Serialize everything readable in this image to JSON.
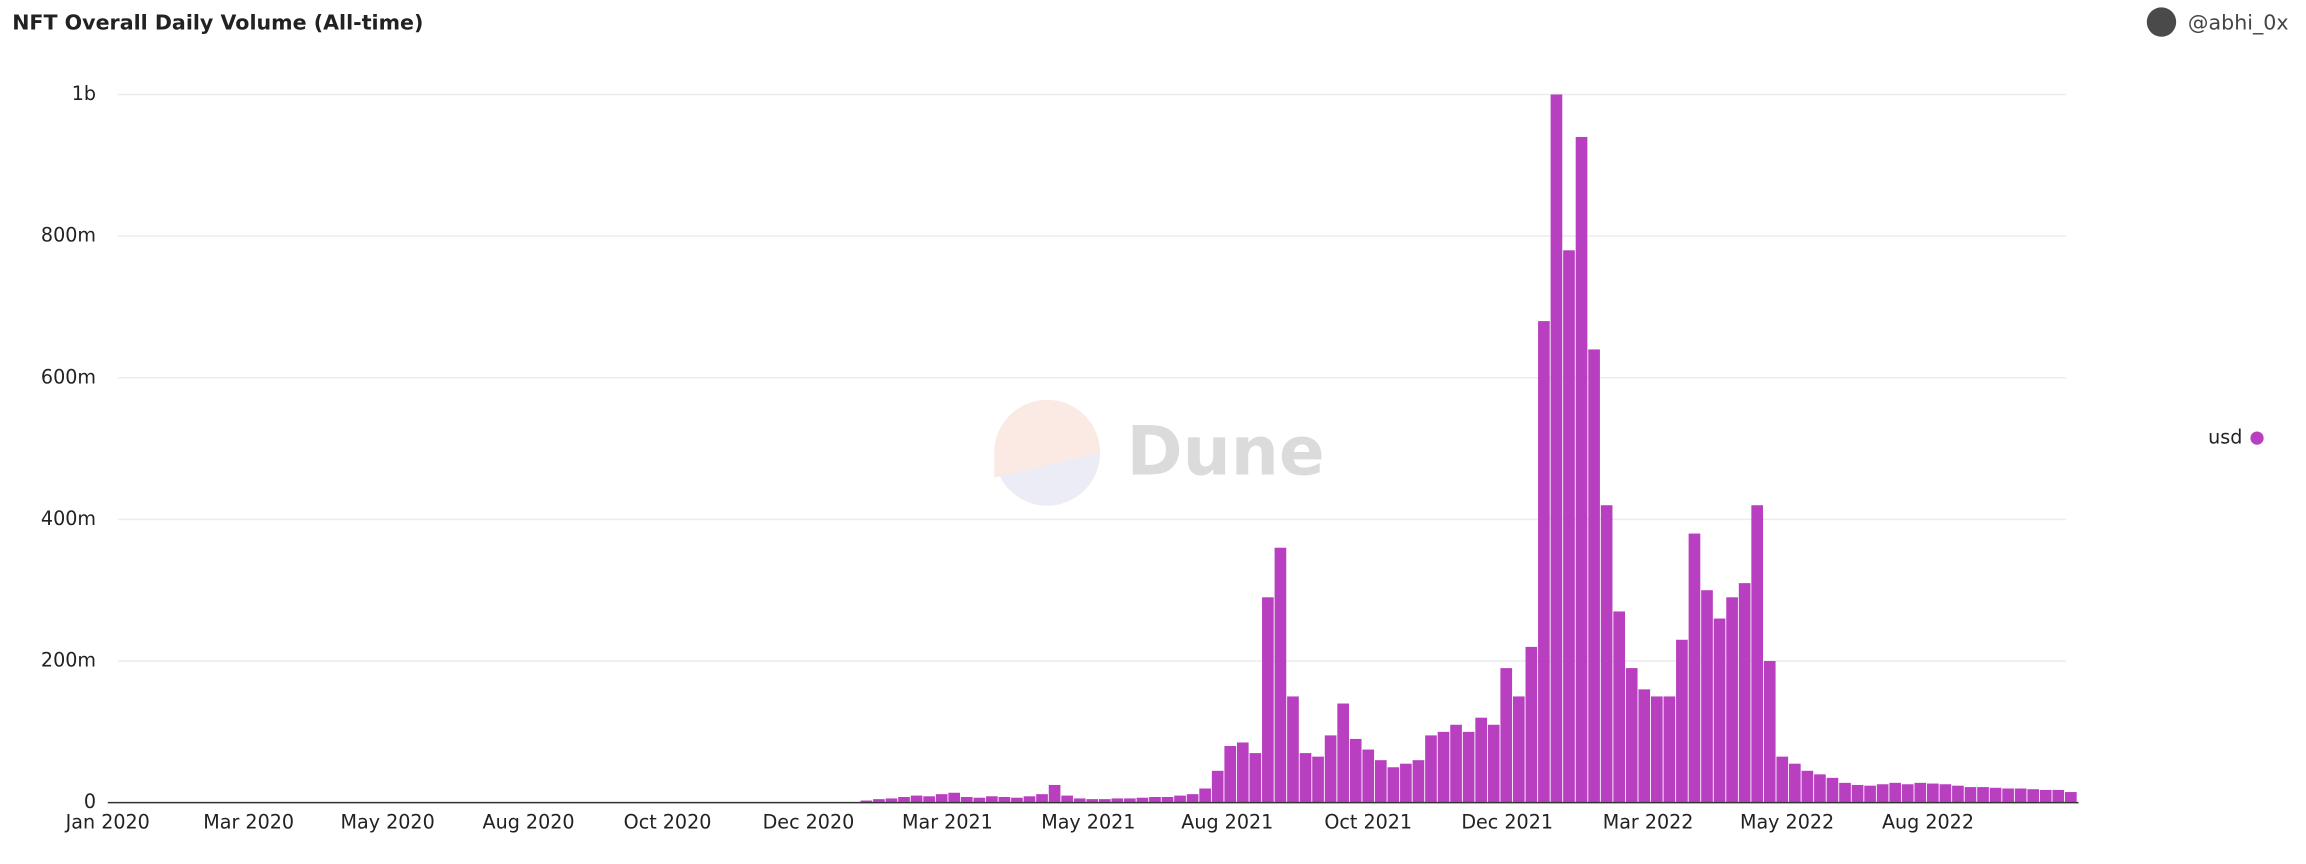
{
  "chart_data": {
    "type": "bar",
    "title": "NFT Overall Daily Volume (All-time)",
    "author": "@abhi_0x",
    "watermark": "Dune",
    "xlim": [
      0,
      1021
    ],
    "xticks": [
      {
        "value": 0,
        "label": "Jan 2020"
      },
      {
        "value": 73,
        "label": "Mar 2020"
      },
      {
        "value": 145,
        "label": "May 2020"
      },
      {
        "value": 218,
        "label": "Aug 2020"
      },
      {
        "value": 290,
        "label": "Oct 2020"
      },
      {
        "value": 363,
        "label": "Dec 2020"
      },
      {
        "value": 435,
        "label": "Mar 2021"
      },
      {
        "value": 508,
        "label": "May 2021"
      },
      {
        "value": 580,
        "label": "Aug 2021"
      },
      {
        "value": 653,
        "label": "Oct 2021"
      },
      {
        "value": 725,
        "label": "Dec 2021"
      },
      {
        "value": 798,
        "label": "Mar 2022"
      },
      {
        "value": 870,
        "label": "May 2022"
      },
      {
        "value": 943,
        "label": "Aug 2022"
      }
    ],
    "ylim": [
      0,
      1040000000
    ],
    "yticks": [
      0,
      {
        "value": 200000000,
        "label": "200m"
      },
      {
        "value": 400000000,
        "label": "400m"
      },
      {
        "value": 600000000,
        "label": "600m"
      },
      {
        "value": 800000000,
        "label": "800m"
      },
      {
        "value": 1000000000,
        "label": "1b"
      }
    ],
    "grid": true,
    "legend": "right",
    "x": [
      390,
      396.5,
      403,
      409.5,
      416,
      422.5,
      429,
      435.5,
      442,
      448.5,
      455,
      461.5,
      468,
      474.5,
      481,
      487.5,
      494,
      500.5,
      507,
      513.5,
      520,
      526.5,
      533,
      539.5,
      546,
      552.5,
      559,
      565.5,
      572,
      578.5,
      585,
      591.5,
      598,
      604.5,
      611,
      617.5,
      624,
      630.5,
      637,
      643.5,
      650,
      656.5,
      663,
      669.5,
      676,
      682.5,
      689,
      695.5,
      702,
      708.5,
      715,
      721.5,
      728,
      734.5,
      741,
      747.5,
      754,
      760.5,
      767,
      773.5,
      780,
      786.5,
      793,
      799.5,
      806,
      812.5,
      819,
      825.5,
      832,
      838.5,
      845,
      851.5,
      858,
      864.5,
      871,
      877.5,
      884,
      890.5,
      897,
      903.5,
      910,
      916.5,
      923,
      929.5,
      936,
      942.5,
      949,
      955.5,
      962,
      968.5,
      975,
      981.5,
      988,
      994.5,
      1001,
      1007.5,
      1014
    ],
    "series": [
      {
        "name": "usd",
        "color": "#b83fc0",
        "values": [
          3000000.0,
          5000000.0,
          6000000.0,
          8000000.0,
          10000000.0,
          9000000.0,
          12000000.0,
          14000000.0,
          8000000.0,
          7000000.0,
          9000000.0,
          8000000.0,
          7000000.0,
          9000000.0,
          12000000.0,
          25000000.0,
          10000000.0,
          6000000.0,
          5000000.0,
          5000000.0,
          6000000.0,
          6000000.0,
          7000000.0,
          8000000.0,
          8000000.0,
          10000000.0,
          12000000.0,
          20000000.0,
          45000000.0,
          80000000.0,
          85000000.0,
          70000000.0,
          290000000.0,
          360000000.0,
          150000000.0,
          70000000.0,
          65000000.0,
          95000000.0,
          140000000.0,
          90000000.0,
          75000000.0,
          60000000.0,
          50000000.0,
          55000000.0,
          60000000.0,
          95000000.0,
          100000000.0,
          110000000.0,
          100000000.0,
          120000000.0,
          110000000.0,
          190000000.0,
          150000000.0,
          220000000.0,
          680000000.0,
          1000000000.0,
          780000000.0,
          940000000.0,
          640000000.0,
          420000000.0,
          270000000.0,
          190000000.0,
          160000000.0,
          150000000.0,
          150000000.0,
          230000000.0,
          380000000.0,
          300000000.0,
          260000000.0,
          290000000.0,
          310000000.0,
          420000000.0,
          200000000.0,
          65000000.0,
          55000000.0,
          45000000.0,
          40000000.0,
          35000000.0,
          28000000.0,
          25000000.0,
          24000000.0,
          26000000.0,
          28000000.0,
          26000000.0,
          28000000.0,
          27000000.0,
          26000000.0,
          24000000.0,
          22000000.0,
          22000000.0,
          21000000.0,
          20000000.0,
          20000000.0,
          19000000.0,
          18000000.0,
          18000000.0,
          15000000.0
        ]
      }
    ]
  }
}
